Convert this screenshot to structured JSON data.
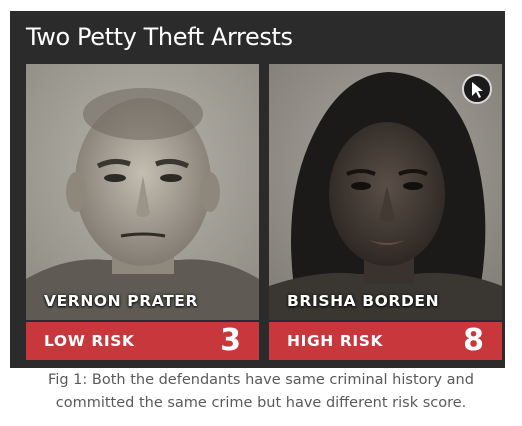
{
  "card": {
    "title": "Two Petty Theft Arrests"
  },
  "defendants": [
    {
      "name": "VERNON PRATER",
      "risk_label": "LOW RISK",
      "risk_score": "3"
    },
    {
      "name": "BRISHA BORDEN",
      "risk_label": "HIGH RISK",
      "risk_score": "8"
    }
  ],
  "caption": {
    "line1": "Fig 1: Both the defendants have same criminal history and",
    "line2": "committed the same crime but have different risk score."
  },
  "colors": {
    "card_background": "#2b2b2b",
    "risk_bar": "#c8373b",
    "caption_text": "#5a5a5a"
  },
  "icons": {
    "photo_overlay": "cursor-arrow-icon"
  }
}
